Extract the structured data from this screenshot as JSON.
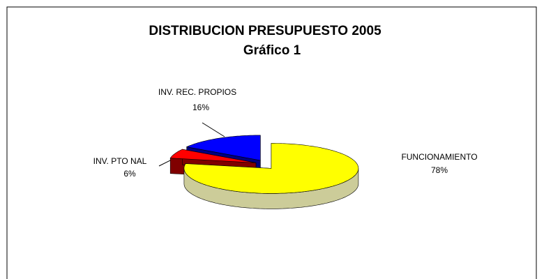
{
  "chart_data": {
    "type": "pie",
    "title": "DISTRIBUCION PRESUPUESTO 2005",
    "subtitle": "Gráfico  1",
    "categories": [
      "FUNCIONAMIENTO",
      "INV. PTO NAL",
      "INV. REC. PROPIOS"
    ],
    "values": [
      78,
      6,
      16
    ],
    "value_labels": [
      "78%",
      "6%",
      "16%"
    ],
    "colors": [
      "#ffff00",
      "#ff0000",
      "#0000ff"
    ],
    "side_colors": [
      "#cccc99",
      "#800000",
      "#000080"
    ]
  }
}
